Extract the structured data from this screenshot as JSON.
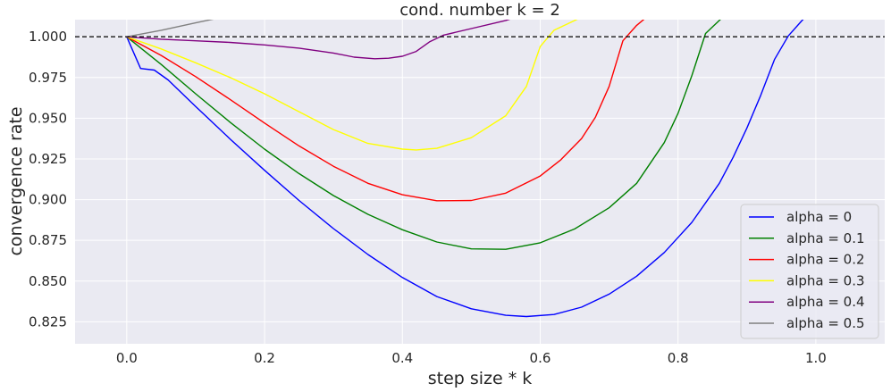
{
  "chart_data": {
    "type": "line",
    "title": "cond. number k = 2",
    "xlabel": "step size * k",
    "ylabel": "convergence rate",
    "xlim": [
      -0.075,
      1.1
    ],
    "ylim": [
      0.8115,
      1.0105
    ],
    "xticks": [
      0.0,
      0.2,
      0.4,
      0.6,
      0.8,
      1.0
    ],
    "xtick_labels": [
      "0.0",
      "0.2",
      "0.4",
      "0.6",
      "0.8",
      "1.0"
    ],
    "yticks": [
      0.825,
      0.85,
      0.875,
      0.9,
      0.925,
      0.95,
      0.975,
      1.0
    ],
    "ytick_labels": [
      "0.825",
      "0.850",
      "0.875",
      "0.900",
      "0.925",
      "0.950",
      "0.975",
      "1.000"
    ],
    "grid": true,
    "legend_position": "lower-right",
    "reference_line": {
      "y": 1.0,
      "style": "dashed",
      "color": "#000000"
    },
    "background_color": "#eaeaf2",
    "series": [
      {
        "name": "alpha = 0",
        "color": "#0000ff",
        "x": [
          0,
          0.02,
          0.04,
          0.06,
          0.1,
          0.15,
          0.2,
          0.25,
          0.3,
          0.35,
          0.4,
          0.45,
          0.5,
          0.55,
          0.58,
          0.62,
          0.66,
          0.7,
          0.74,
          0.78,
          0.82,
          0.86,
          0.88,
          0.9,
          0.92,
          0.94,
          0.96,
          0.98,
          1.0
        ],
        "y": [
          1.0,
          0.9805,
          0.9795,
          0.9735,
          0.9572,
          0.9372,
          0.918,
          0.8995,
          0.8822,
          0.8663,
          0.8522,
          0.8405,
          0.833,
          0.829,
          0.8282,
          0.8295,
          0.834,
          0.842,
          0.853,
          0.8675,
          0.886,
          0.91,
          0.926,
          0.944,
          0.964,
          0.986,
          1.0005,
          1.01,
          1.018
        ]
      },
      {
        "name": "alpha = 0.1",
        "color": "#008000",
        "x": [
          0,
          0.05,
          0.1,
          0.15,
          0.2,
          0.25,
          0.3,
          0.35,
          0.4,
          0.45,
          0.5,
          0.55,
          0.6,
          0.65,
          0.7,
          0.74,
          0.78,
          0.8,
          0.82,
          0.84,
          0.86,
          0.88
        ],
        "y": [
          1.0,
          0.983,
          0.965,
          0.9475,
          0.931,
          0.916,
          0.9025,
          0.891,
          0.8815,
          0.874,
          0.8698,
          0.8695,
          0.8735,
          0.882,
          0.895,
          0.91,
          0.935,
          0.953,
          0.976,
          1.002,
          1.01,
          1.018
        ]
      },
      {
        "name": "alpha = 0.2",
        "color": "#ff0000",
        "x": [
          0,
          0.05,
          0.1,
          0.15,
          0.2,
          0.25,
          0.3,
          0.35,
          0.4,
          0.45,
          0.5,
          0.55,
          0.6,
          0.63,
          0.66,
          0.68,
          0.7,
          0.72,
          0.74,
          0.76
        ],
        "y": [
          1.0,
          0.9885,
          0.9755,
          0.9615,
          0.947,
          0.933,
          0.9205,
          0.91,
          0.903,
          0.8993,
          0.8995,
          0.904,
          0.9145,
          0.9245,
          0.9375,
          0.9505,
          0.9695,
          0.9975,
          1.007,
          1.014
        ]
      },
      {
        "name": "alpha = 0.3",
        "color": "#ffff00",
        "x": [
          0,
          0.05,
          0.1,
          0.15,
          0.2,
          0.25,
          0.3,
          0.35,
          0.4,
          0.42,
          0.45,
          0.5,
          0.55,
          0.58,
          0.6,
          0.62,
          0.64,
          0.66,
          0.68
        ],
        "y": [
          1.0,
          0.9925,
          0.984,
          0.975,
          0.965,
          0.954,
          0.943,
          0.9345,
          0.931,
          0.9305,
          0.9315,
          0.938,
          0.9515,
          0.9695,
          0.994,
          1.004,
          1.008,
          1.012,
          1.018
        ]
      },
      {
        "name": "alpha = 0.4",
        "color": "#800080",
        "x": [
          0,
          0.05,
          0.1,
          0.15,
          0.2,
          0.25,
          0.3,
          0.33,
          0.36,
          0.38,
          0.4,
          0.42,
          0.44,
          0.46,
          0.5,
          0.55,
          0.58
        ],
        "y": [
          1.0,
          0.9985,
          0.9975,
          0.9965,
          0.995,
          0.993,
          0.99,
          0.9875,
          0.9865,
          0.9868,
          0.988,
          0.991,
          0.997,
          1.001,
          1.005,
          1.01,
          1.014
        ]
      },
      {
        "name": "alpha = 0.5",
        "color": "#808080",
        "x": [
          0,
          0.05,
          0.1,
          0.15
        ],
        "y": [
          1.0,
          1.004,
          1.0085,
          1.013
        ]
      }
    ]
  }
}
